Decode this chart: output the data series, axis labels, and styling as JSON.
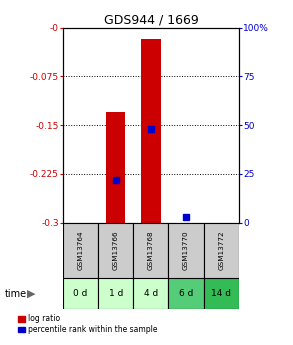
{
  "title": "GDS944 / 1669",
  "samples": [
    "GSM13764",
    "GSM13766",
    "GSM13768",
    "GSM13770",
    "GSM13772"
  ],
  "time_labels": [
    "0 d",
    "1 d",
    "4 d",
    "6 d",
    "14 d"
  ],
  "time_colors": [
    "#ccffcc",
    "#ccffcc",
    "#ccffcc",
    "#55cc77",
    "#33bb55"
  ],
  "log_ratios": [
    null,
    -0.13,
    -0.018,
    null,
    null
  ],
  "log_ratio_bottoms": [
    null,
    -0.3,
    -0.3,
    null,
    null
  ],
  "percentile_ranks": [
    null,
    22,
    48,
    3,
    null
  ],
  "ylim_left": [
    -0.3,
    0
  ],
  "ylim_right": [
    0,
    100
  ],
  "yticks_left": [
    0,
    -0.075,
    -0.15,
    -0.225,
    -0.3
  ],
  "ytick_labels_left": [
    "-0",
    "-0.075",
    "-0.15",
    "-0.225",
    "-0.3"
  ],
  "yticks_right": [
    0,
    25,
    50,
    75,
    100
  ],
  "ytick_labels_right": [
    "0",
    "25",
    "50",
    "75",
    "100%"
  ],
  "bar_color": "#cc0000",
  "percentile_color": "#0000cc",
  "sample_bg": "#cccccc",
  "bar_width": 0.55,
  "dotted_yvals": [
    -0.075,
    -0.15,
    -0.225
  ]
}
